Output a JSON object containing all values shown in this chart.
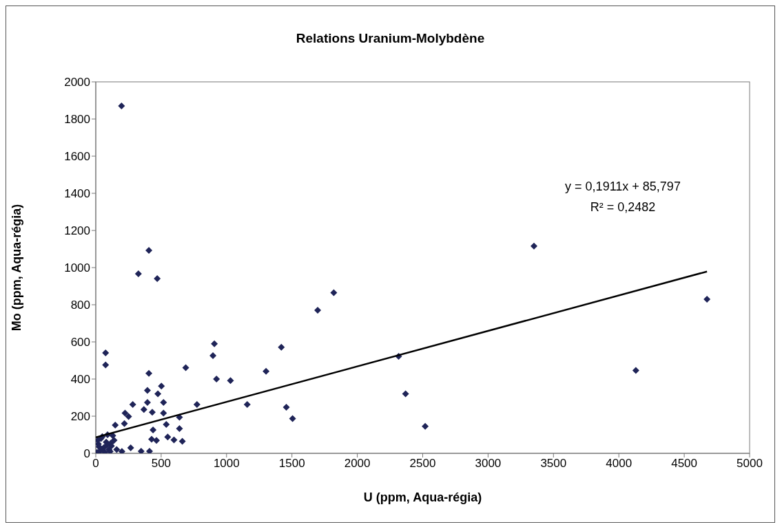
{
  "chart_data": {
    "type": "scatter",
    "title": "Relations Uranium-Molybdène",
    "xlabel": "U (ppm, Aqua-régia)",
    "ylabel": "Mo (ppm, Aqua-régia)",
    "xlim": [
      0,
      5000
    ],
    "xticks": [
      0,
      500,
      1000,
      1500,
      2000,
      2500,
      3000,
      3500,
      4000,
      4500,
      5000
    ],
    "ylim": [
      0,
      2000
    ],
    "yticks": [
      0,
      200,
      400,
      600,
      800,
      1000,
      1200,
      1400,
      1600,
      1800,
      2000
    ],
    "marker": "diamond",
    "annotations": [
      "y = 0,1911x + 85,797",
      "R² = 0,2482"
    ],
    "series": [
      {
        "color": "#1f2458",
        "x": [
          197,
          406,
          326,
          470,
          75,
          75,
          406,
          688,
          907,
          896,
          923,
          1030,
          1158,
          1302,
          1419,
          1457,
          1505,
          1697,
          1820,
          2316,
          2369,
          2519,
          3351,
          4674,
          4130,
          774,
          502,
          395,
          475,
          283,
          395,
          518,
          368,
          432,
          224,
          251,
          518,
          539,
          640,
          219,
          149,
          438,
          640,
          427,
          464,
          550,
          598,
          662,
          411,
          347,
          267,
          20,
          40,
          60,
          80,
          100,
          120,
          30,
          10,
          50,
          90,
          140,
          110,
          160,
          200,
          70,
          130,
          15,
          45,
          85,
          115,
          25
        ],
        "values": [
          1870,
          1093,
          967,
          941,
          541,
          476,
          431,
          461,
          590,
          526,
          400,
          392,
          263,
          442,
          571,
          248,
          187,
          770,
          865,
          522,
          320,
          145,
          1116,
          830,
          446,
          263,
          362,
          339,
          320,
          263,
          274,
          274,
          236,
          221,
          217,
          198,
          217,
          156,
          194,
          160,
          152,
          126,
          133,
          76,
          69,
          88,
          72,
          65,
          11,
          11,
          30,
          50,
          80,
          30,
          60,
          20,
          40,
          10,
          5,
          90,
          100,
          70,
          10,
          20,
          10,
          5,
          95,
          70,
          20,
          45,
          55,
          35
        ]
      },
      {
        "type": "line",
        "color": "#000000",
        "marker": "none",
        "x": [
          0,
          4674
        ],
        "values": [
          86,
          979
        ]
      }
    ]
  }
}
